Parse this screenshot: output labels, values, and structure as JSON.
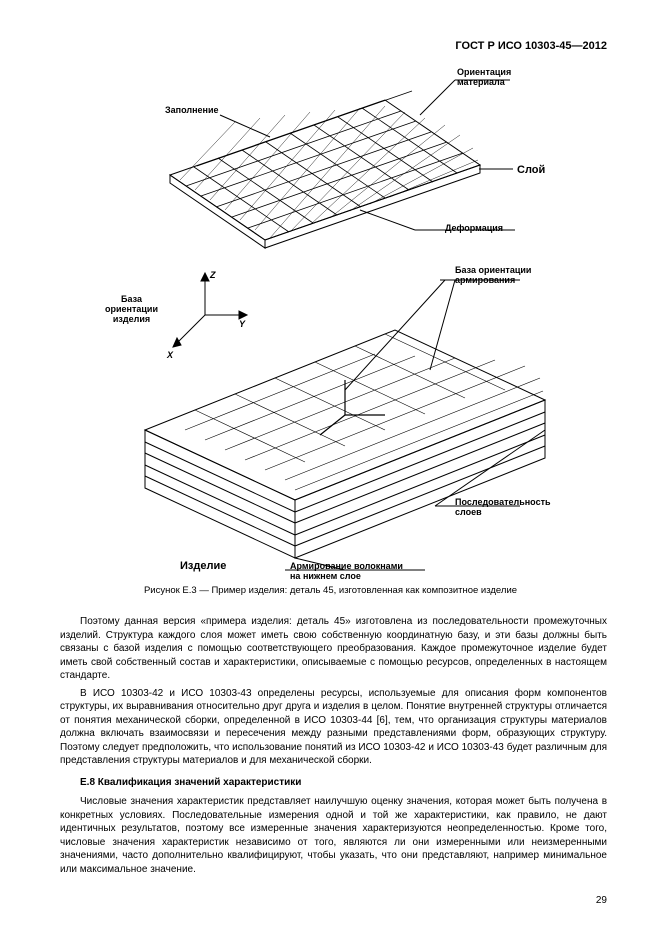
{
  "header": {
    "standard": "ГОСТ Р ИСО 10303-45—2012"
  },
  "figure": {
    "caption": "Рисунок  Е.3 — Пример изделия: деталь 45, изготовленная как композитное изделие",
    "labels": {
      "fill": "Заполнение",
      "material_orientation": "Ориентация\nматериала",
      "layer": "Слой",
      "deformation": "Деформация",
      "product_orientation_base": "База\nориентации\nизделия",
      "reinf_orientation_base": "База ориентации\nармирования",
      "sequence_layers": "Последовательность\nслоев",
      "product": "Изделие",
      "fiber_reinforcement": "Армирование волокнами\nна нижнем слое"
    },
    "style": {
      "stroke": "#000000",
      "stroke_width": 1,
      "hatch_stroke_width": 0.8,
      "background": "#ffffff",
      "axes": [
        "X",
        "Y",
        "Z"
      ]
    }
  },
  "body": {
    "p1": "Поэтому данная версия «примера изделия: деталь 45» изготовлена из последовательности промежуточных изделий. Структура каждого слоя может иметь свою собственную координатную базу, и эти базы должны быть связаны с базой изделия с помощью соответствующего преобразования. Каждое промежуточное изделие будет иметь свой собственный состав и характеристики, описываемые с помощью ресурсов, определенных в настоящем стандарте.",
    "p2": "В ИСО 10303-42 и ИСО 10303-43 определены ресурсы, используемые для описания форм компонентов структуры, их выравнивания относительно друг друга и изделия в целом. Понятие внутренней структуры отличается от понятия механической сборки, определенной в ИСО 10303-44 [6], тем, что организация структуры материалов должна включать взаимосвязи и пересечения между разными представлениями форм, образующих структуру. Поэтому следует предположить, что использование понятий из ИСО 10303-42 и ИСО 10303-43 будет различным для представления структуры материалов и для механической сборки.",
    "heading": "Е.8  Квалификация значений характеристики",
    "p3": "Числовые значения характеристик представляет наилучшую оценку значения, которая может быть получена в конкретных условиях. Последовательные измерения одной и той же характеристики, как правило, не дают идентичных результатов, поэтому все измеренные значения характеризуются неопределенностью. Кроме того, числовые значения характеристик независимо от того, являются ли они измеренными или неизмеренными значениями, часто дополнительно квалифицируют, чтобы указать, что они представляют, например минимальное или максимальное значение."
  },
  "page_number": "29"
}
